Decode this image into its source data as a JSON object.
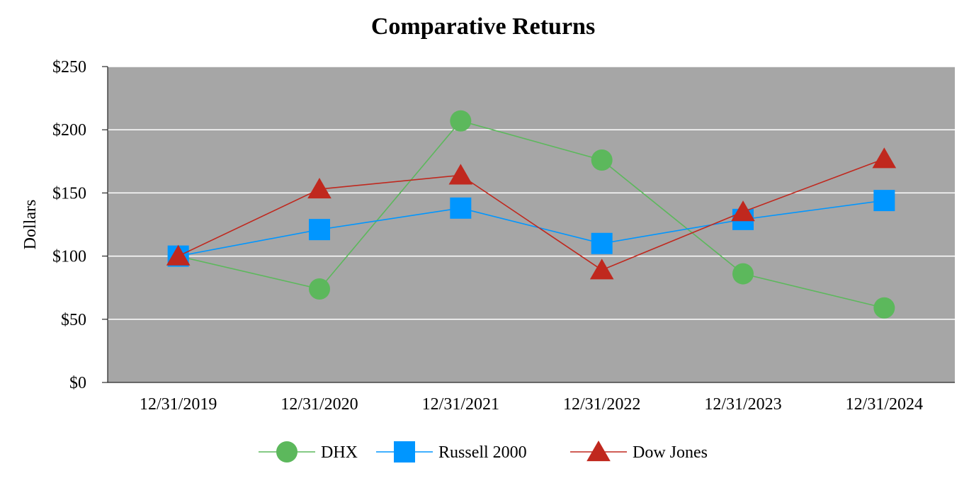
{
  "chart_data": {
    "type": "line",
    "title": "Comparative Returns",
    "xlabel": "",
    "ylabel": "Dollars",
    "categories": [
      "12/31/2019",
      "12/31/2020",
      "12/31/2021",
      "12/31/2022",
      "12/31/2023",
      "12/31/2024"
    ],
    "ylim": [
      0,
      250
    ],
    "yticks": [
      0,
      50,
      100,
      150,
      200,
      250
    ],
    "ytick_labels": [
      "$0",
      "$50",
      "$100",
      "$150",
      "$200",
      "$250"
    ],
    "grid": true,
    "plot_background": "#a6a6a6",
    "legend_position": "bottom",
    "series": [
      {
        "name": "DHX",
        "color": "#5cb85c",
        "marker": "circle",
        "values": [
          100,
          74,
          207,
          176,
          86,
          59
        ]
      },
      {
        "name": "Russell 2000",
        "color": "#0096ff",
        "marker": "square",
        "values": [
          100,
          121,
          138,
          110,
          129,
          144
        ]
      },
      {
        "name": "Dow Jones",
        "color": "#c0281e",
        "marker": "triangle",
        "values": [
          100,
          153,
          164,
          89,
          135,
          177
        ]
      }
    ]
  }
}
